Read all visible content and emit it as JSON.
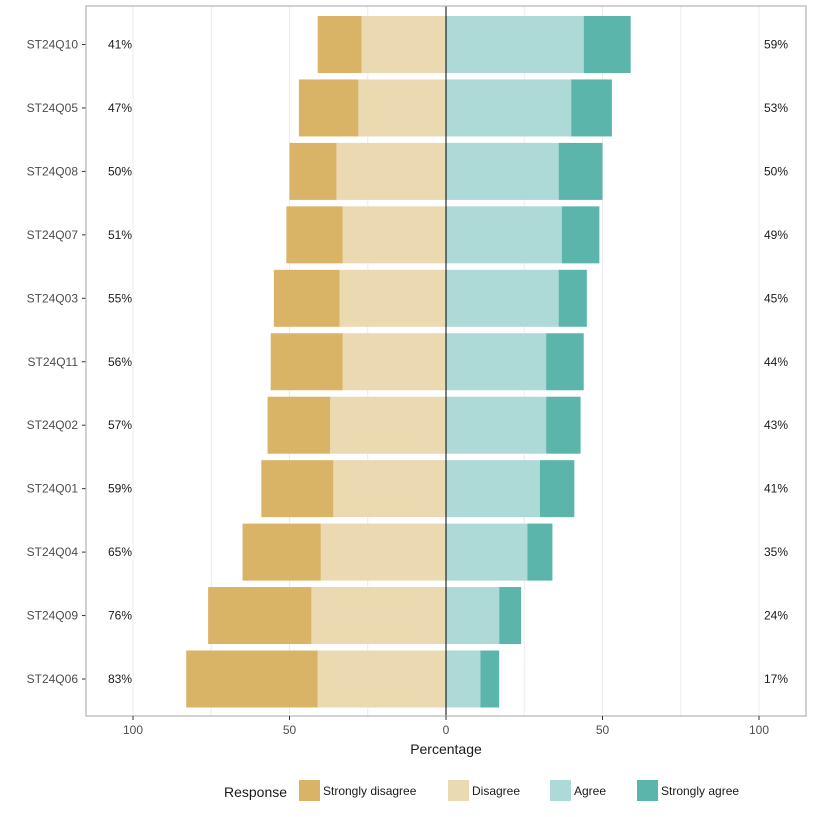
{
  "chart_data": {
    "type": "bar",
    "orientation": "horizontal-diverging",
    "xlabel": "Percentage",
    "xlim": [
      -115,
      115
    ],
    "x_ticks": [
      -100,
      -50,
      0,
      50,
      100
    ],
    "x_tick_labels": [
      "100",
      "50",
      "0",
      "50",
      "100"
    ],
    "grid": true,
    "legend_position": "bottom",
    "legend_title": "Response",
    "categories": [
      "ST24Q10",
      "ST24Q05",
      "ST24Q08",
      "ST24Q07",
      "ST24Q03",
      "ST24Q11",
      "ST24Q02",
      "ST24Q01",
      "ST24Q04",
      "ST24Q09",
      "ST24Q06"
    ],
    "series": [
      {
        "name": "Strongly disagree",
        "color": "#d9b466",
        "side": "left",
        "values": [
          14,
          19,
          15,
          18,
          21,
          23,
          20,
          23,
          25,
          33,
          42
        ]
      },
      {
        "name": "Disagree",
        "color": "#ebd9b2",
        "side": "left",
        "values": [
          27,
          28,
          35,
          33,
          34,
          33,
          37,
          36,
          40,
          43,
          41
        ]
      },
      {
        "name": "Agree",
        "color": "#add9d6",
        "side": "right",
        "values": [
          44,
          40,
          36,
          37,
          36,
          32,
          32,
          30,
          26,
          17,
          11
        ]
      },
      {
        "name": "Strongly agree",
        "color": "#5bb5ab",
        "side": "right",
        "values": [
          15,
          13,
          14,
          12,
          9,
          12,
          11,
          11,
          8,
          7,
          6
        ]
      }
    ],
    "left_labels": [
      "41%",
      "47%",
      "50%",
      "51%",
      "55%",
      "56%",
      "57%",
      "59%",
      "65%",
      "76%",
      "83%"
    ],
    "right_labels": [
      "59%",
      "53%",
      "50%",
      "49%",
      "45%",
      "44%",
      "43%",
      "41%",
      "35%",
      "24%",
      "17%"
    ]
  }
}
